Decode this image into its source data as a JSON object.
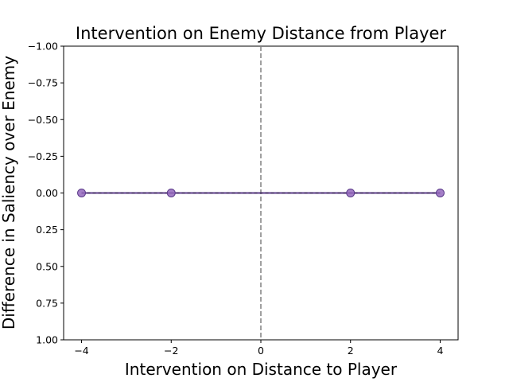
{
  "chart_data": {
    "type": "line",
    "title": "Intervention on Enemy Distance from Player",
    "xlabel": "Intervention on Distance to Player",
    "ylabel": "Difference in Saliency over Enemy",
    "xlim": [
      -4.4,
      4.4
    ],
    "ylim": [
      -1.0,
      1.0
    ],
    "y_axis_inverted": true,
    "x_ticks": [
      -4,
      -2,
      0,
      2,
      4
    ],
    "x_tick_labels": [
      "−4",
      "−2",
      "0",
      "2",
      "4"
    ],
    "y_ticks": [
      -1.0,
      -0.75,
      -0.5,
      -0.25,
      0.0,
      0.25,
      0.5,
      0.75,
      1.0
    ],
    "y_tick_labels": [
      "−1.00",
      "−0.75",
      "−0.50",
      "−0.25",
      "0.00",
      "0.25",
      "0.50",
      "0.75",
      "1.00"
    ],
    "grid": false,
    "reference_line": {
      "x": 0,
      "style": "dashed",
      "color": "#808080"
    },
    "series": [
      {
        "x": [
          -4,
          -2,
          2,
          4
        ],
        "values": [
          0.0,
          0.0,
          0.0,
          0.0
        ],
        "color": "#9467bd",
        "line_color": "#5b3a8a",
        "marker": "circle"
      }
    ]
  }
}
